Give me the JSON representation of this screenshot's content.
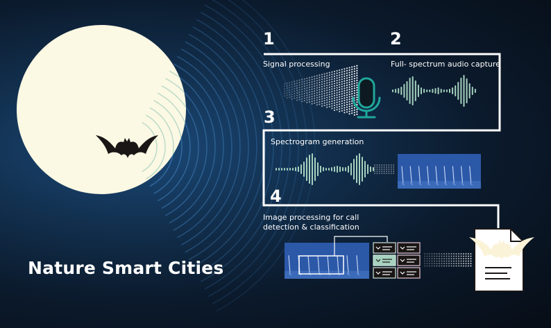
{
  "title": "Nature Smart Cities",
  "steps": [
    {
      "number": "1",
      "label": "Signal processing"
    },
    {
      "number": "2",
      "label": "Full- spectrum audio capture"
    },
    {
      "number": "3",
      "label": "Spectrogram generation"
    },
    {
      "number": "4",
      "label_line1": "Image processing for call",
      "label_line2": "detection & classification"
    }
  ],
  "colors": {
    "moon": "#fbf8e3",
    "wave": "#a6d2bf",
    "mic": "#1fa79a",
    "spectrogram_bg": "#2c58a8",
    "connector": "#ffffff",
    "bat": "#1a1616"
  },
  "icons": [
    "moon-icon",
    "bat-icon",
    "microphone-icon",
    "spectrogram-icon",
    "document-icon"
  ]
}
